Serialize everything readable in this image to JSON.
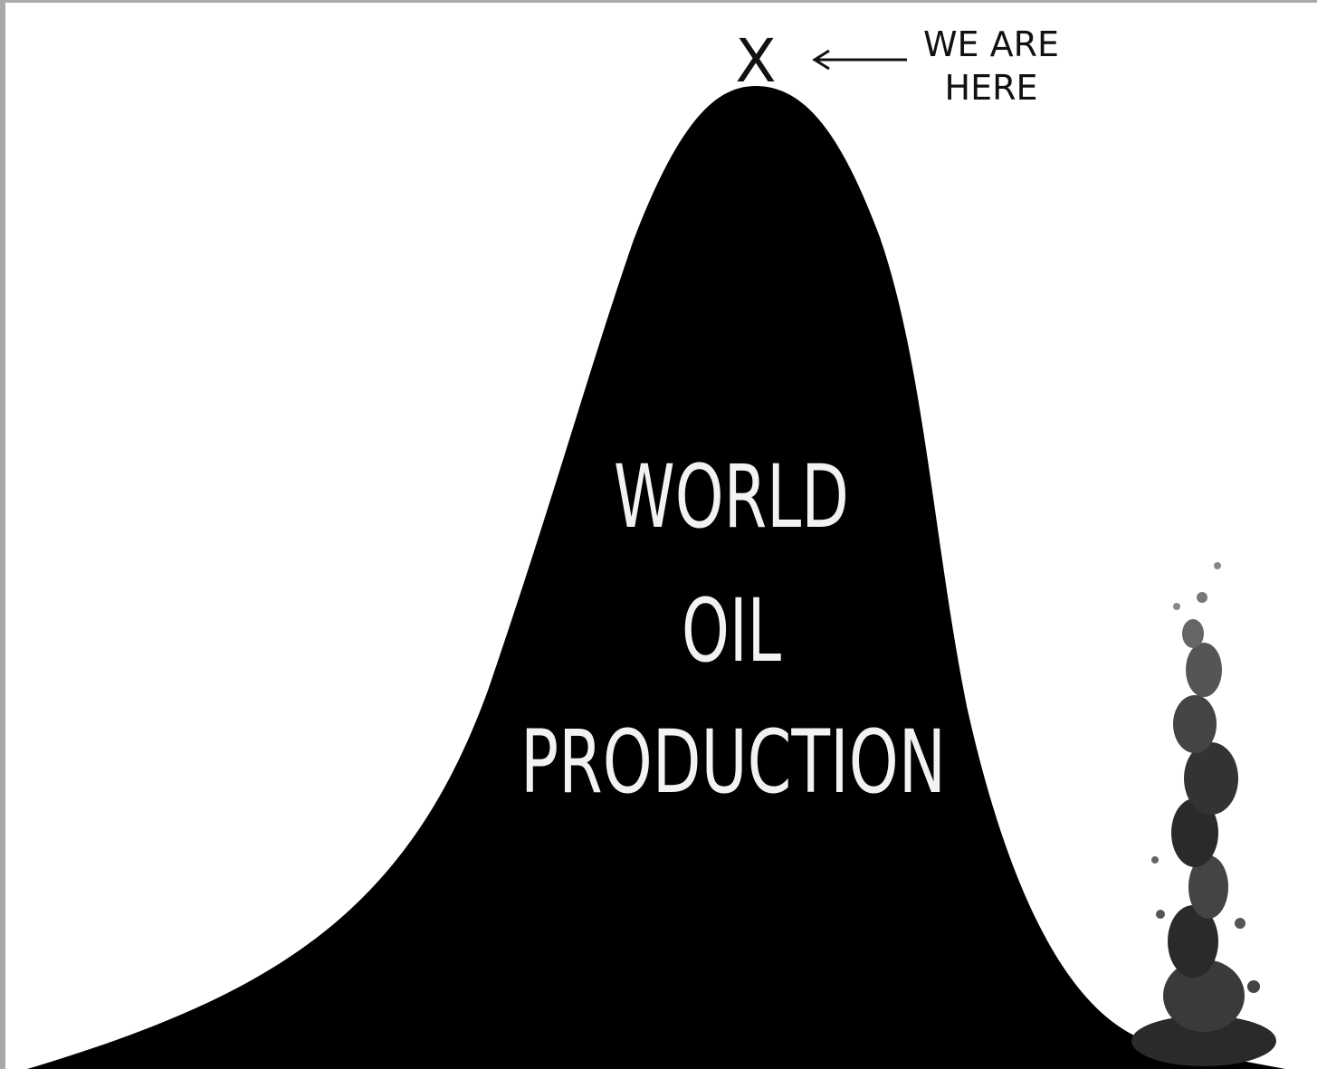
{
  "marker": "X",
  "annotation": {
    "lines": [
      "WE ARE",
      "HERE"
    ]
  },
  "label": {
    "lines": [
      "WORLD",
      "OIL",
      "PRODUCTION"
    ]
  }
}
